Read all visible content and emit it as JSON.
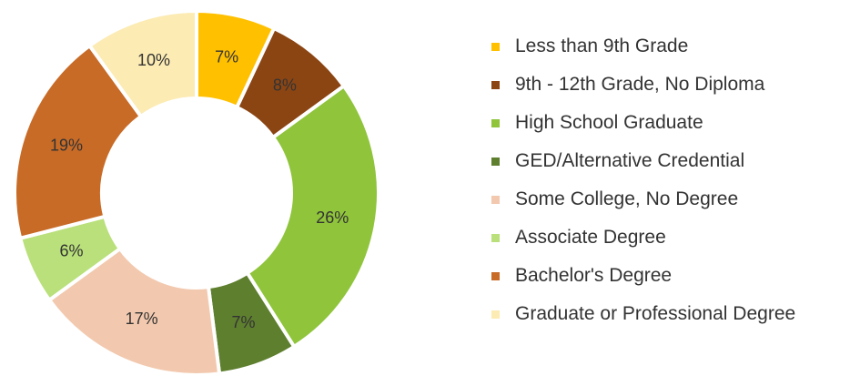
{
  "chart_data": {
    "type": "pie",
    "donut": true,
    "title": "",
    "legend_position": "right",
    "categories": [
      "Less than 9th Grade",
      "9th - 12th Grade, No Diploma",
      "High School Graduate",
      "GED/Alternative Credential",
      "Some College, No Degree",
      "Associate Degree",
      "Bachelor's Degree",
      "Graduate or Professional Degree"
    ],
    "values": [
      7,
      8,
      26,
      7,
      17,
      6,
      19,
      10
    ],
    "value_labels": [
      "7%",
      "8%",
      "26%",
      "7%",
      "17%",
      "6%",
      "19%",
      "10%"
    ],
    "colors": [
      "#FFC000",
      "#8B4513",
      "#8FC43B",
      "#5E7F2E",
      "#F2C9AE",
      "#B9E07A",
      "#C86B27",
      "#FCEBB3"
    ]
  }
}
